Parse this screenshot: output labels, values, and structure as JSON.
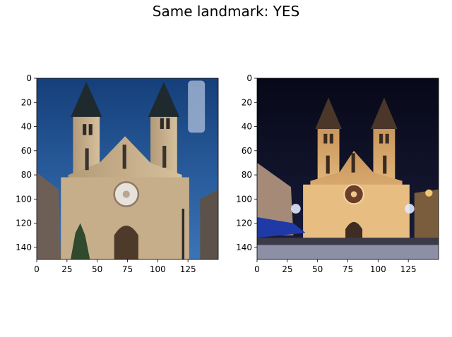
{
  "title": "Same landmark: YES",
  "chart_data": [
    {
      "type": "image",
      "description_colors": {
        "sky": "#1b4f8f",
        "stone": "#c6ad8b",
        "roof": "#1f2a2f"
      },
      "xlim": [
        0,
        150
      ],
      "ylim": [
        150,
        0
      ],
      "xticks": [
        "0",
        "25",
        "50",
        "75",
        "100",
        "125"
      ],
      "yticks": [
        "0",
        "20",
        "40",
        "60",
        "80",
        "100",
        "120",
        "140"
      ],
      "xtick_values": [
        0,
        25,
        50,
        75,
        100,
        125
      ],
      "ytick_values": [
        0,
        20,
        40,
        60,
        80,
        100,
        120,
        140
      ]
    },
    {
      "type": "image",
      "description_colors": {
        "sky": "#0b0d22",
        "stone": "#e3b57a",
        "roof": "#3d3026"
      },
      "xlim": [
        0,
        150
      ],
      "ylim": [
        150,
        0
      ],
      "xticks": [
        "0",
        "25",
        "50",
        "75",
        "100",
        "125"
      ],
      "yticks": [
        "0",
        "20",
        "40",
        "60",
        "80",
        "100",
        "120",
        "140"
      ],
      "xtick_values": [
        0,
        25,
        50,
        75,
        100,
        125
      ],
      "ytick_values": [
        0,
        20,
        40,
        60,
        80,
        100,
        120,
        140
      ]
    }
  ]
}
